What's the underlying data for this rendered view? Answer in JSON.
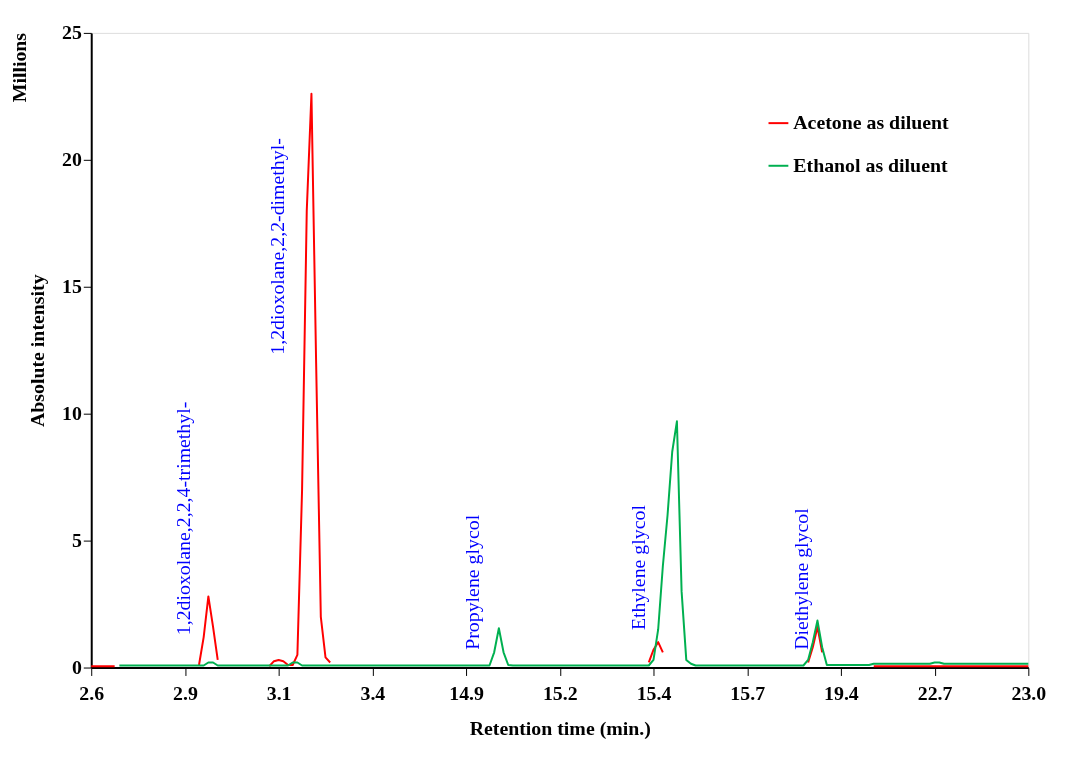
{
  "chart_data": {
    "type": "line",
    "xlabel": "Retention time (min.)",
    "ylabel": "Absolute intensity",
    "categories": [
      "2.6",
      null,
      null,
      null,
      null,
      null,
      null,
      null,
      null,
      null,
      null,
      null,
      null,
      null,
      null,
      null,
      null,
      null,
      null,
      null,
      "2.9",
      null,
      null,
      null,
      null,
      null,
      null,
      null,
      null,
      null,
      null,
      null,
      null,
      null,
      null,
      null,
      null,
      null,
      null,
      null,
      "3.1",
      null,
      null,
      null,
      null,
      null,
      null,
      null,
      null,
      null,
      null,
      null,
      null,
      null,
      null,
      null,
      null,
      null,
      null,
      null,
      "3.4",
      null,
      null,
      null,
      null,
      null,
      null,
      null,
      null,
      null,
      null,
      null,
      null,
      null,
      null,
      null,
      null,
      null,
      null,
      null,
      "14.9",
      null,
      null,
      null,
      null,
      null,
      null,
      null,
      null,
      null,
      null,
      null,
      null,
      null,
      null,
      null,
      null,
      null,
      null,
      null,
      "15.2",
      null,
      null,
      null,
      null,
      null,
      null,
      null,
      null,
      null,
      null,
      null,
      null,
      null,
      null,
      null,
      null,
      null,
      null,
      null,
      "15.4",
      null,
      null,
      null,
      null,
      null,
      null,
      null,
      null,
      null,
      null,
      null,
      null,
      null,
      null,
      null,
      null,
      null,
      null,
      null,
      "15.7",
      null,
      null,
      null,
      null,
      null,
      null,
      null,
      null,
      null,
      null,
      null,
      null,
      null,
      null,
      null,
      null,
      null,
      null,
      null,
      "19.4",
      null,
      null,
      null,
      null,
      null,
      null,
      null,
      null,
      null,
      null,
      null,
      null,
      null,
      null,
      null,
      null,
      null,
      null,
      null,
      "22.7",
      null,
      null,
      null,
      null,
      null,
      null,
      null,
      null,
      null,
      null,
      null,
      null,
      null,
      null,
      null,
      null,
      null,
      null,
      null,
      "23.0"
    ],
    "series": [
      {
        "name": "Acetone as diluent",
        "color": "#ff0000",
        "values": [
          0.05,
          0.05,
          0.05,
          0.05,
          0.05,
          0.05,
          null,
          null,
          null,
          null,
          null,
          null,
          null,
          null,
          null,
          null,
          null,
          null,
          null,
          null,
          null,
          null,
          null,
          0.1,
          1.2,
          2.8,
          1.6,
          0.3,
          null,
          null,
          null,
          null,
          null,
          null,
          null,
          null,
          null,
          null,
          0.05,
          0.25,
          0.3,
          0.25,
          0.1,
          0.1,
          0.5,
          7,
          18,
          22.6,
          12,
          2,
          0.4,
          0.2,
          null,
          null,
          null,
          null,
          null,
          null,
          null,
          null,
          null,
          null,
          null,
          null,
          null,
          null,
          null,
          null,
          null,
          null,
          null,
          null,
          null,
          null,
          null,
          null,
          null,
          null,
          null,
          null,
          null,
          null,
          null,
          null,
          null,
          null,
          null,
          null,
          null,
          null,
          null,
          null,
          null,
          null,
          null,
          null,
          null,
          null,
          null,
          null,
          null,
          null,
          null,
          null,
          null,
          null,
          null,
          null,
          null,
          null,
          null,
          null,
          null,
          null,
          null,
          null,
          null,
          null,
          null,
          0.2,
          0.7,
          1.0,
          0.6,
          null,
          null,
          null,
          null,
          null,
          null,
          null,
          null,
          null,
          null,
          null,
          null,
          null,
          null,
          null,
          null,
          null,
          null,
          null,
          null,
          null,
          null,
          null,
          null,
          null,
          null,
          null,
          null,
          null,
          null,
          0.2,
          0.8,
          1.6,
          0.6,
          null,
          null,
          null,
          null,
          null,
          null,
          null,
          null,
          null,
          null,
          0.05,
          0.05,
          0.05,
          0.05,
          0.05,
          0.05,
          0.05,
          0.05,
          0.05,
          0.05,
          0.05,
          0.05,
          0.05,
          0.05,
          0.05,
          0.05,
          0.05,
          0.05,
          0.05,
          0.05,
          0.05,
          0.05,
          0.05,
          0.05,
          0.05,
          0.05,
          0.05,
          0.05,
          0.05,
          0.05,
          0.05,
          0.05,
          0.05,
          0.05
        ]
      },
      {
        "name": "Ethanol as diluent",
        "color": "#00b050",
        "values": [
          null,
          null,
          null,
          null,
          null,
          null,
          0.08,
          0.08,
          0.08,
          0.08,
          0.08,
          0.08,
          0.08,
          0.08,
          0.08,
          0.08,
          0.08,
          0.08,
          0.08,
          0.08,
          0.08,
          0.08,
          0.08,
          0.08,
          0.08,
          0.2,
          0.2,
          0.08,
          0.08,
          0.08,
          0.08,
          0.08,
          0.08,
          0.08,
          0.08,
          0.08,
          0.08,
          0.08,
          0.08,
          0.08,
          0.08,
          0.08,
          0.08,
          0.2,
          0.2,
          0.08,
          0.08,
          0.08,
          0.08,
          0.08,
          0.08,
          0.08,
          0.08,
          0.08,
          0.08,
          0.08,
          0.08,
          0.08,
          0.08,
          0.08,
          0.08,
          0.08,
          0.08,
          0.08,
          0.08,
          0.08,
          0.08,
          0.08,
          0.08,
          0.08,
          0.08,
          0.08,
          0.08,
          0.08,
          0.08,
          0.08,
          0.08,
          0.08,
          0.08,
          0.08,
          0.08,
          0.08,
          0.08,
          0.08,
          0.08,
          0.08,
          0.6,
          1.55,
          0.6,
          0.1,
          0.08,
          0.08,
          0.08,
          0.08,
          0.08,
          0.08,
          0.08,
          0.08,
          0.08,
          0.08,
          0.08,
          0.08,
          0.08,
          0.08,
          0.08,
          0.08,
          0.08,
          0.08,
          0.08,
          0.08,
          0.08,
          0.08,
          0.08,
          0.08,
          0.08,
          0.08,
          0.08,
          0.08,
          0.08,
          0.08,
          0.3,
          1.5,
          4,
          6,
          8.5,
          9.7,
          3,
          0.3,
          0.15,
          0.08,
          0.08,
          0.08,
          0.08,
          0.08,
          0.08,
          0.08,
          0.08,
          0.08,
          0.08,
          0.08,
          0.08,
          0.08,
          0.08,
          0.08,
          0.08,
          0.08,
          0.08,
          0.08,
          0.08,
          0.08,
          0.08,
          0.08,
          0.08,
          0.3,
          1.0,
          1.85,
          0.8,
          0.1,
          0.1,
          0.1,
          0.1,
          0.1,
          0.1,
          0.1,
          0.1,
          0.1,
          0.1,
          0.15,
          0.15,
          0.15,
          0.15,
          0.15,
          0.15,
          0.15,
          0.15,
          0.15,
          0.15,
          0.15,
          0.15,
          0.15,
          0.2,
          0.2,
          0.15,
          0.15,
          0.15,
          0.15,
          0.15,
          0.15,
          0.15,
          0.15,
          0.15,
          0.15,
          0.15,
          0.15,
          0.15,
          0.15,
          0.15,
          0.15,
          0.15,
          0.15,
          0.15
        ]
      }
    ],
    "ylim": [
      0,
      25
    ],
    "yticks": [
      0,
      5,
      10,
      15,
      20,
      25
    ],
    "grid": false,
    "legend": "top right",
    "marker": "none",
    "line_style": "solid",
    "annotations": [
      "Millions",
      "1,2dioxolane,2,2,4-trimethyl-",
      "1,2dioxolane,2,2-dimethyl-",
      "Propylene glycol",
      "Ethylene glycol",
      "Diethylene glycol"
    ]
  }
}
